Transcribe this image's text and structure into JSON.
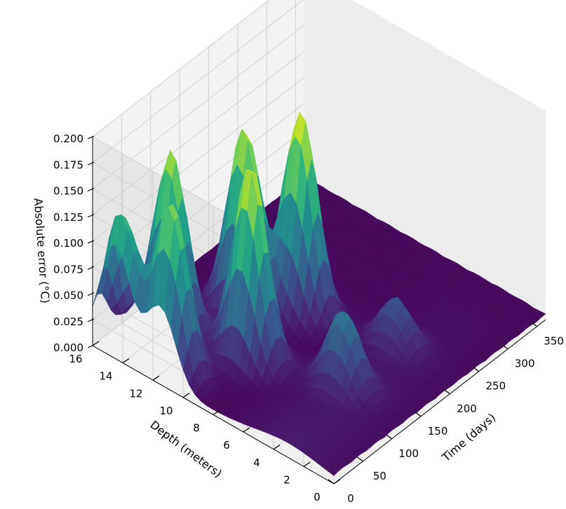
{
  "chart_data": {
    "type": "surface3d",
    "title": "",
    "xlabel": "Time (days)",
    "ylabel": "Depth (meters)",
    "zlabel": "Absolute error (°C)",
    "xlim": [
      0,
      365
    ],
    "ylim": [
      0,
      16
    ],
    "zlim": [
      0,
      0.2
    ],
    "x_ticks": [
      "0",
      "50",
      "100",
      "150",
      "200",
      "250",
      "300",
      "350"
    ],
    "y_ticks": [
      "0",
      "2",
      "4",
      "6",
      "8",
      "10",
      "12",
      "14",
      "16"
    ],
    "z_ticks": [
      "0.000",
      "0.025",
      "0.050",
      "0.075",
      "0.100",
      "0.125",
      "0.150",
      "0.175",
      "0.200"
    ],
    "colormap": "viridis",
    "grid": true,
    "peaks": [
      {
        "time": 10,
        "depth": 14.5,
        "error": 0.13
      },
      {
        "time": 20,
        "depth": 11.5,
        "error": 0.16
      },
      {
        "time": 70,
        "depth": 13.5,
        "error": 0.17
      },
      {
        "time": 90,
        "depth": 9.0,
        "error": 0.19
      },
      {
        "time": 145,
        "depth": 11.5,
        "error": 0.18
      },
      {
        "time": 190,
        "depth": 9.5,
        "error": 0.19
      },
      {
        "time": 120,
        "depth": 4.0,
        "error": 0.07
      },
      {
        "time": 210,
        "depth": 4.0,
        "error": 0.045
      }
    ]
  }
}
